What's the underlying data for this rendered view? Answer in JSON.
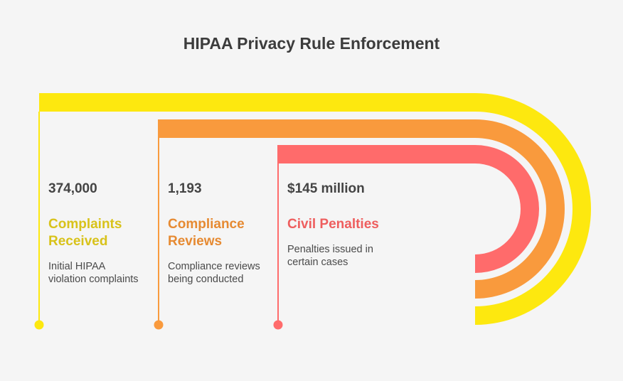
{
  "title": "HIPAA Privacy Rule Enforcement",
  "items": [
    {
      "value": "374,000",
      "label_line1": "Complaints",
      "label_line2": "Received",
      "desc_line1": "Initial HIPAA",
      "desc_line2": "violation complaints",
      "color": "#fde80f",
      "label_color": "#d8c21a"
    },
    {
      "value": "1,193",
      "label_line1": "Compliance",
      "label_line2": "Reviews",
      "desc_line1": "Compliance reviews",
      "desc_line2": "being conducted",
      "color": "#f99a3d",
      "label_color": "#e68a32"
    },
    {
      "value": "$145 million",
      "label_line1": "Civil Penalties",
      "label_line2": "",
      "desc_line1": "Penalties issued in",
      "desc_line2": "certain cases",
      "color": "#ff6b6b",
      "label_color": "#ee5e5e"
    }
  ]
}
